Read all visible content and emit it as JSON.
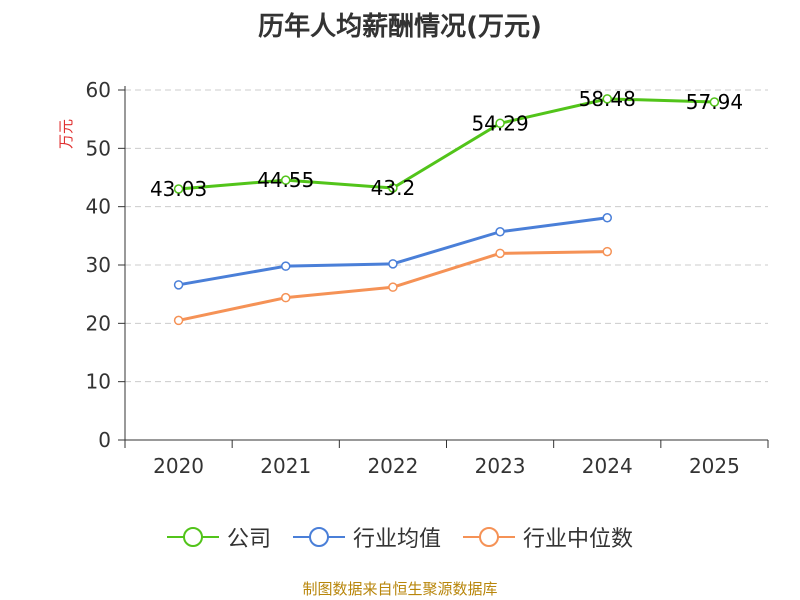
{
  "chart_data": {
    "type": "line",
    "title": "历年人均薪酬情况(万元)",
    "ylabel": "万元",
    "xlabel": "",
    "categories": [
      "2020",
      "2021",
      "2022",
      "2023",
      "2024",
      "2025"
    ],
    "ylim": [
      0,
      60
    ],
    "yticks": [
      0,
      10,
      20,
      30,
      40,
      50,
      60
    ],
    "grid": true,
    "legend_position": "bottom",
    "series": [
      {
        "name": "公司",
        "color": "#52c41a",
        "values": [
          43.03,
          44.55,
          43.2,
          54.29,
          58.48,
          57.94
        ],
        "labels": [
          "43.03",
          "44.55",
          "43.2",
          "54.29",
          "58.48",
          "57.94"
        ]
      },
      {
        "name": "行业均值",
        "color": "#4a7fd8",
        "values": [
          26.6,
          29.8,
          30.2,
          35.7,
          38.1,
          null
        ]
      },
      {
        "name": "行业中位数",
        "color": "#f59256",
        "values": [
          20.5,
          24.4,
          26.2,
          32.0,
          32.3,
          null
        ]
      }
    ]
  },
  "source": "制图数据来自恒生聚源数据库"
}
